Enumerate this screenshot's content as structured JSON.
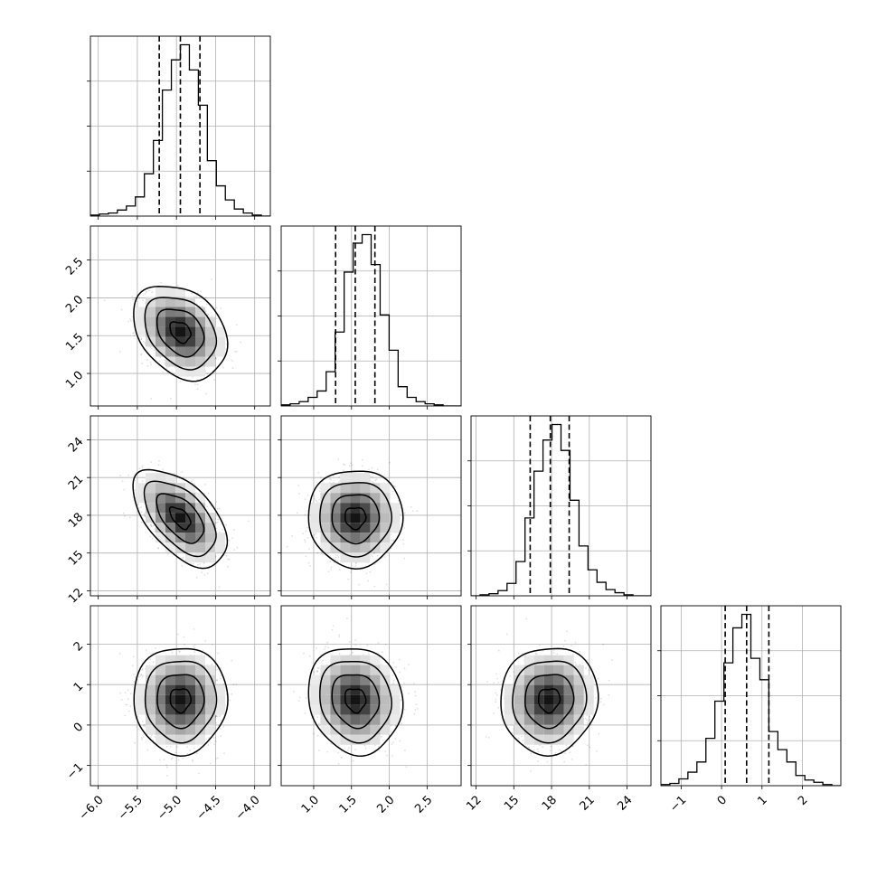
{
  "chart_data": {
    "type": "corner",
    "grid": true,
    "parameters": [
      {
        "range": [
          -6.1,
          -3.8
        ],
        "ticks": [
          -6.0,
          -5.5,
          -5.0,
          -4.5,
          -4.0
        ],
        "tick_labels": [
          "−6.0",
          "−5.5",
          "−5.0",
          "−4.5",
          "−4.0"
        ],
        "quantiles": [
          -5.22,
          -4.95,
          -4.7
        ],
        "mean": -4.95,
        "sd": 0.24
      },
      {
        "range": [
          0.57,
          2.95
        ],
        "ticks": [
          1.0,
          1.5,
          2.0,
          2.5
        ],
        "tick_labels": [
          "1.0",
          "1.5",
          "2.0",
          "2.5"
        ],
        "quantiles": [
          1.29,
          1.55,
          1.81
        ],
        "mean": 1.55,
        "sd": 0.25
      },
      {
        "range": [
          11.6,
          25.9
        ],
        "ticks": [
          12,
          15,
          18,
          21,
          24
        ],
        "tick_labels": [
          "12",
          "15",
          "18",
          "21",
          "24"
        ],
        "quantiles": [
          16.3,
          17.9,
          19.4
        ],
        "mean": 17.8,
        "sd": 1.55
      },
      {
        "range": [
          -1.5,
          2.95
        ],
        "ticks": [
          -1,
          0,
          1,
          2
        ],
        "tick_labels": [
          "−1",
          "0",
          "1",
          "2"
        ],
        "quantiles": [
          0.09,
          0.62,
          1.17
        ],
        "mean": 0.62,
        "sd": 0.53
      }
    ],
    "correlations": [
      [
        1.0,
        -0.3,
        -0.55,
        0.0
      ],
      [
        -0.3,
        1.0,
        0.0,
        -0.1
      ],
      [
        -0.55,
        0.0,
        1.0,
        0.05
      ],
      [
        0.0,
        -0.1,
        0.05,
        1.0
      ]
    ],
    "histograms": [
      {
        "edges": [
          -6.1,
          -3.8
        ],
        "counts": [
          1,
          2,
          3,
          6,
          10,
          19,
          42,
          75,
          125,
          155,
          170,
          145,
          110,
          55,
          30,
          16,
          7,
          3,
          1,
          0
        ]
      },
      {
        "edges": [
          0.57,
          2.95
        ],
        "counts": [
          1,
          2,
          4,
          8,
          14,
          32,
          69,
          125,
          152,
          160,
          132,
          85,
          52,
          18,
          8,
          4,
          2,
          1,
          0,
          0
        ]
      },
      {
        "edges": [
          11.6,
          25.9
        ],
        "counts": [
          0,
          1,
          2,
          5,
          12,
          33,
          75,
          120,
          150,
          165,
          140,
          92,
          48,
          25,
          13,
          6,
          3,
          1,
          0,
          0
        ]
      },
      {
        "edges": [
          -1.5,
          2.95
        ],
        "counts": [
          1,
          2,
          6,
          12,
          21,
          42,
          75,
          109,
          140,
          152,
          113,
          94,
          48,
          32,
          21,
          9,
          5,
          3,
          1,
          0
        ]
      }
    ]
  }
}
